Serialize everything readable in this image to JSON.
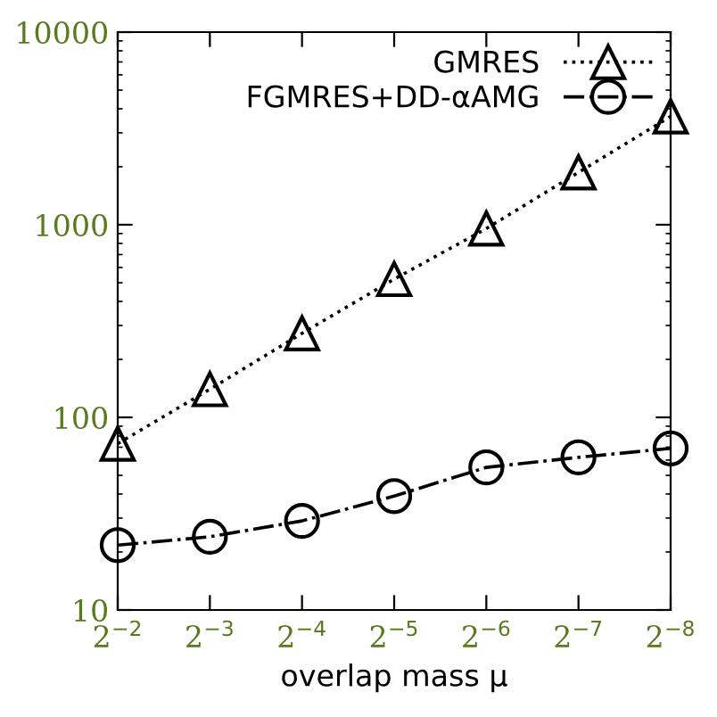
{
  "chart_data": {
    "type": "line",
    "xlabel": "overlap mass μ",
    "log": "xy",
    "x": [
      0.25,
      0.125,
      0.0625,
      0.03125,
      0.015625,
      0.0078125,
      0.00390625
    ],
    "xlim": [
      0.25,
      0.00390625
    ],
    "xticks": [
      {
        "value": 0.25,
        "label": "2$^{−2}$"
      },
      {
        "value": 0.125,
        "label": "2$^{−3}$"
      },
      {
        "value": 0.0625,
        "label": "2$^{−4}$"
      },
      {
        "value": 0.03125,
        "label": "2$^{−5}$"
      },
      {
        "value": 0.015625,
        "label": "2$^{−6}$"
      },
      {
        "value": 0.0078125,
        "label": "2$^{−7}$"
      },
      {
        "value": 0.00390625,
        "label": "2$^{−8}$"
      }
    ],
    "ylim": [
      10,
      10000
    ],
    "yticks": [
      10,
      100,
      1000,
      10000
    ],
    "legend": "top right",
    "grid": false,
    "series": [
      {
        "name": "GMRES",
        "color": "#000000",
        "marker": "triangle",
        "line_style": "dotted",
        "values": [
          73,
          140,
          273,
          522,
          955,
          1870,
          3650
        ]
      },
      {
        "name": "FGMRES+DD-αAMG",
        "color": "#000000",
        "marker": "circle",
        "line_style": "dashdot",
        "values": [
          21.7,
          24,
          29,
          39,
          55,
          62,
          69
        ]
      }
    ]
  }
}
